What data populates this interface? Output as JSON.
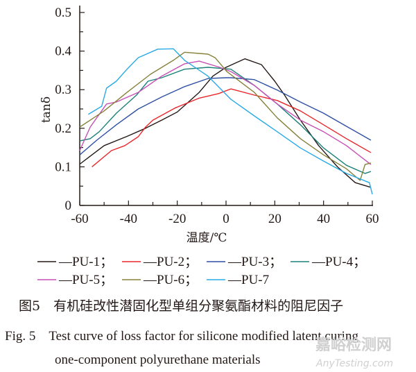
{
  "chart_data": {
    "type": "line",
    "xlabel": "温度/℃",
    "ylabel": "tanδ",
    "xlim": [
      -60,
      60
    ],
    "ylim": [
      0,
      0.5
    ],
    "xticks": [
      -60,
      -40,
      -20,
      0,
      20,
      40,
      60
    ],
    "xtick_labels": [
      "-60",
      "-40",
      "-20",
      "0",
      "20",
      "40",
      "60"
    ],
    "yticks": [
      0,
      0.1,
      0.2,
      0.3,
      0.4,
      0.5
    ],
    "ytick_labels": [
      "0",
      "0.1",
      "0.2",
      "0.3",
      "0.4",
      "0.5"
    ],
    "grid": false,
    "legend_placement": "below",
    "series": [
      {
        "name": "PU-1",
        "legend_label": "—PU-1；",
        "color": "#231815",
        "x": [
          -60,
          -50,
          -40.6,
          -33,
          -26.4,
          -20,
          -11,
          -5.4,
          0,
          7.7,
          14.5,
          20,
          24,
          30.5,
          38,
          45.7,
          53,
          59.4
        ],
        "y": [
          0.107,
          0.155,
          0.179,
          0.2,
          0.221,
          0.242,
          0.293,
          0.335,
          0.358,
          0.38,
          0.365,
          0.322,
          0.286,
          0.221,
          0.155,
          0.1,
          0.059,
          0.047
        ]
      },
      {
        "name": "PU-2",
        "legend_label": "—PU-2；",
        "color": "#e8262a",
        "x": [
          -55,
          -47,
          -41.5,
          -36,
          -33,
          -30,
          -20.7,
          -11,
          -3,
          2,
          11.6,
          21,
          30.5,
          40,
          49.4,
          59.4
        ],
        "y": [
          0.1,
          0.142,
          0.155,
          0.178,
          0.203,
          0.221,
          0.253,
          0.278,
          0.29,
          0.302,
          0.286,
          0.272,
          0.245,
          0.209,
          0.173,
          0.137
        ]
      },
      {
        "name": "PU-3",
        "legend_label": "—PU-3；",
        "color": "#2e4fa3",
        "x": [
          -60,
          -53,
          -45,
          -36,
          -26.4,
          -17,
          -7.4,
          0,
          2,
          11.6,
          21,
          30.5,
          40,
          49.4,
          59.4
        ],
        "y": [
          0.131,
          0.169,
          0.209,
          0.25,
          0.281,
          0.308,
          0.329,
          0.331,
          0.331,
          0.326,
          0.299,
          0.268,
          0.239,
          0.205,
          0.169
        ]
      },
      {
        "name": "PU-4",
        "legend_label": "—PU-4；",
        "color": "#1c8079",
        "x": [
          -60,
          -55.7,
          -52,
          -45,
          -36.7,
          -32,
          -26.4,
          -17,
          -7.4,
          2,
          11.6,
          21,
          30.5,
          40,
          49.4,
          57,
          59.4
        ],
        "y": [
          0.167,
          0.173,
          0.191,
          0.239,
          0.286,
          0.322,
          0.331,
          0.353,
          0.358,
          0.353,
          0.311,
          0.263,
          0.209,
          0.149,
          0.104,
          0.083,
          0.088
        ]
      },
      {
        "name": "PU-5",
        "legend_label": "—PU-5；",
        "color": "#c54fb4",
        "x": [
          -60,
          -55.7,
          -49,
          -45,
          -36,
          -26.4,
          -17,
          -11,
          -2.6,
          2,
          11.6,
          21,
          30.5,
          40,
          49.4,
          59.4
        ],
        "y": [
          0.142,
          0.203,
          0.263,
          0.268,
          0.293,
          0.335,
          0.367,
          0.374,
          0.358,
          0.347,
          0.311,
          0.263,
          0.221,
          0.191,
          0.155,
          0.106
        ]
      },
      {
        "name": "PU-6",
        "legend_label": "—PU-6；",
        "color": "#85803a",
        "x": [
          -60,
          -50,
          -40.6,
          -31,
          -21.6,
          -17,
          -7.4,
          -4.5,
          0.3,
          11.6,
          21,
          30.5,
          40,
          49.4,
          55,
          57,
          59.4
        ],
        "y": [
          0.203,
          0.245,
          0.293,
          0.34,
          0.376,
          0.397,
          0.392,
          0.383,
          0.347,
          0.293,
          0.227,
          0.173,
          0.131,
          0.095,
          0.065,
          0.106,
          0.11
        ]
      },
      {
        "name": "PU-7",
        "legend_label": "—PU-7",
        "color": "#29a9e6",
        "x": [
          -56.5,
          -51,
          -49,
          -45,
          -40.6,
          -36,
          -28,
          -21.6,
          -17,
          -7.4,
          2,
          11.6,
          21,
          30.5,
          40,
          49.4,
          58.8,
          60
        ],
        "y": [
          0.236,
          0.257,
          0.304,
          0.322,
          0.353,
          0.383,
          0.405,
          0.406,
          0.376,
          0.335,
          0.275,
          0.232,
          0.191,
          0.149,
          0.115,
          0.083,
          0.059,
          0.029
        ]
      }
    ]
  },
  "caption": {
    "cn": "图5　有机硅改性潜固化型单组分聚氨酯材料的阻尼因子",
    "en_line1": "Fig. 5　Test curve of loss factor for silicone modified latent curing",
    "en_line2": "one-component polyurethane materials"
  },
  "watermark": {
    "cn": "嘉峪检测网",
    "en": "AnyTesting.com"
  }
}
